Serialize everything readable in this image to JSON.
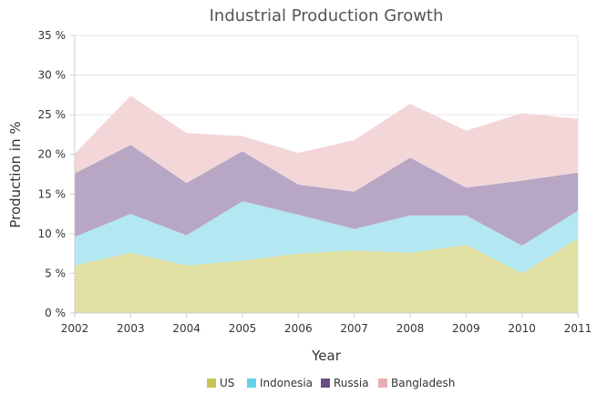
{
  "chart_data": {
    "type": "area",
    "stacked": true,
    "title": "Industrial Production Growth",
    "xlabel": "Year",
    "ylabel": "Production in %",
    "ylim": [
      0,
      35
    ],
    "yticks": [
      0,
      5,
      10,
      15,
      20,
      25,
      30,
      35
    ],
    "ytick_labels": [
      "0 %",
      "5 %",
      "10 %",
      "15 %",
      "20 %",
      "25 %",
      "30 %",
      "35 %"
    ],
    "categories": [
      "2002",
      "2003",
      "2004",
      "2005",
      "2006",
      "2007",
      "2008",
      "2009",
      "2010",
      "2011"
    ],
    "grid": true,
    "legend_position": "bottom",
    "series": [
      {
        "name": "US",
        "color": "#e0e0a3",
        "legend_color": "#c7c757",
        "values": [
          6.0,
          7.6,
          6.0,
          6.6,
          7.5,
          7.9,
          7.6,
          8.6,
          5.0,
          9.4
        ]
      },
      {
        "name": "Indonesia",
        "color": "#b3e7f2",
        "legend_color": "#62d2ea",
        "values": [
          3.6,
          4.9,
          3.8,
          7.5,
          4.9,
          2.7,
          4.7,
          3.7,
          3.5,
          3.5
        ]
      },
      {
        "name": "Russia",
        "color": "#b7a6c4",
        "legend_color": "#6a4d87",
        "values": [
          8.0,
          8.7,
          6.6,
          6.3,
          3.8,
          4.7,
          7.3,
          3.5,
          8.2,
          4.8
        ]
      },
      {
        "name": "Bangladesh",
        "color": "#f3d6d8",
        "legend_color": "#e7aeb3",
        "values": [
          2.5,
          6.2,
          6.3,
          1.9,
          4.0,
          6.5,
          6.8,
          7.2,
          8.5,
          6.8
        ]
      }
    ]
  }
}
